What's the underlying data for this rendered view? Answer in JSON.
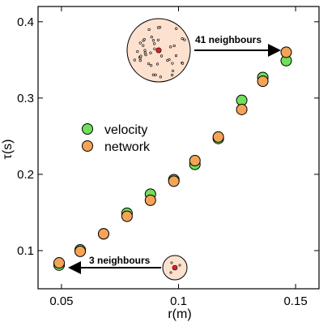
{
  "chart_data": {
    "type": "scatter",
    "xlabel": "r(m)",
    "ylabel": "τ(s)",
    "xlim": [
      0.04,
      0.16
    ],
    "ylim": [
      0.05,
      0.42
    ],
    "xticks": [
      0.05,
      0.1,
      0.15
    ],
    "xtick_labels": [
      "0.05",
      "0.1",
      "0.15"
    ],
    "yticks": [
      0.1,
      0.2,
      0.3,
      0.4
    ],
    "ytick_labels": [
      "0.1",
      "0.2",
      "0.3",
      "0.4"
    ],
    "grid": false,
    "legend_position": "center-left",
    "series": [
      {
        "name": "velocity",
        "color": "#6fe05a",
        "x": [
          0.049,
          0.058,
          0.068,
          0.078,
          0.088,
          0.098,
          0.107,
          0.117,
          0.127,
          0.136,
          0.146
        ],
        "y": [
          0.081,
          0.101,
          0.122,
          0.149,
          0.174,
          0.193,
          0.213,
          0.247,
          0.297,
          0.327,
          0.349
        ]
      },
      {
        "name": "network",
        "color": "#f5a356",
        "x": [
          0.049,
          0.058,
          0.068,
          0.078,
          0.088,
          0.098,
          0.107,
          0.117,
          0.127,
          0.136,
          0.146
        ],
        "y": [
          0.084,
          0.099,
          0.122,
          0.145,
          0.166,
          0.191,
          0.218,
          0.249,
          0.285,
          0.322,
          0.36
        ]
      }
    ],
    "annotations": [
      {
        "text": "41 neighbours",
        "arrow_to": [
          0.146,
          0.36
        ]
      },
      {
        "text": "3 neighbours",
        "arrow_to": [
          0.049,
          0.084
        ]
      }
    ]
  }
}
